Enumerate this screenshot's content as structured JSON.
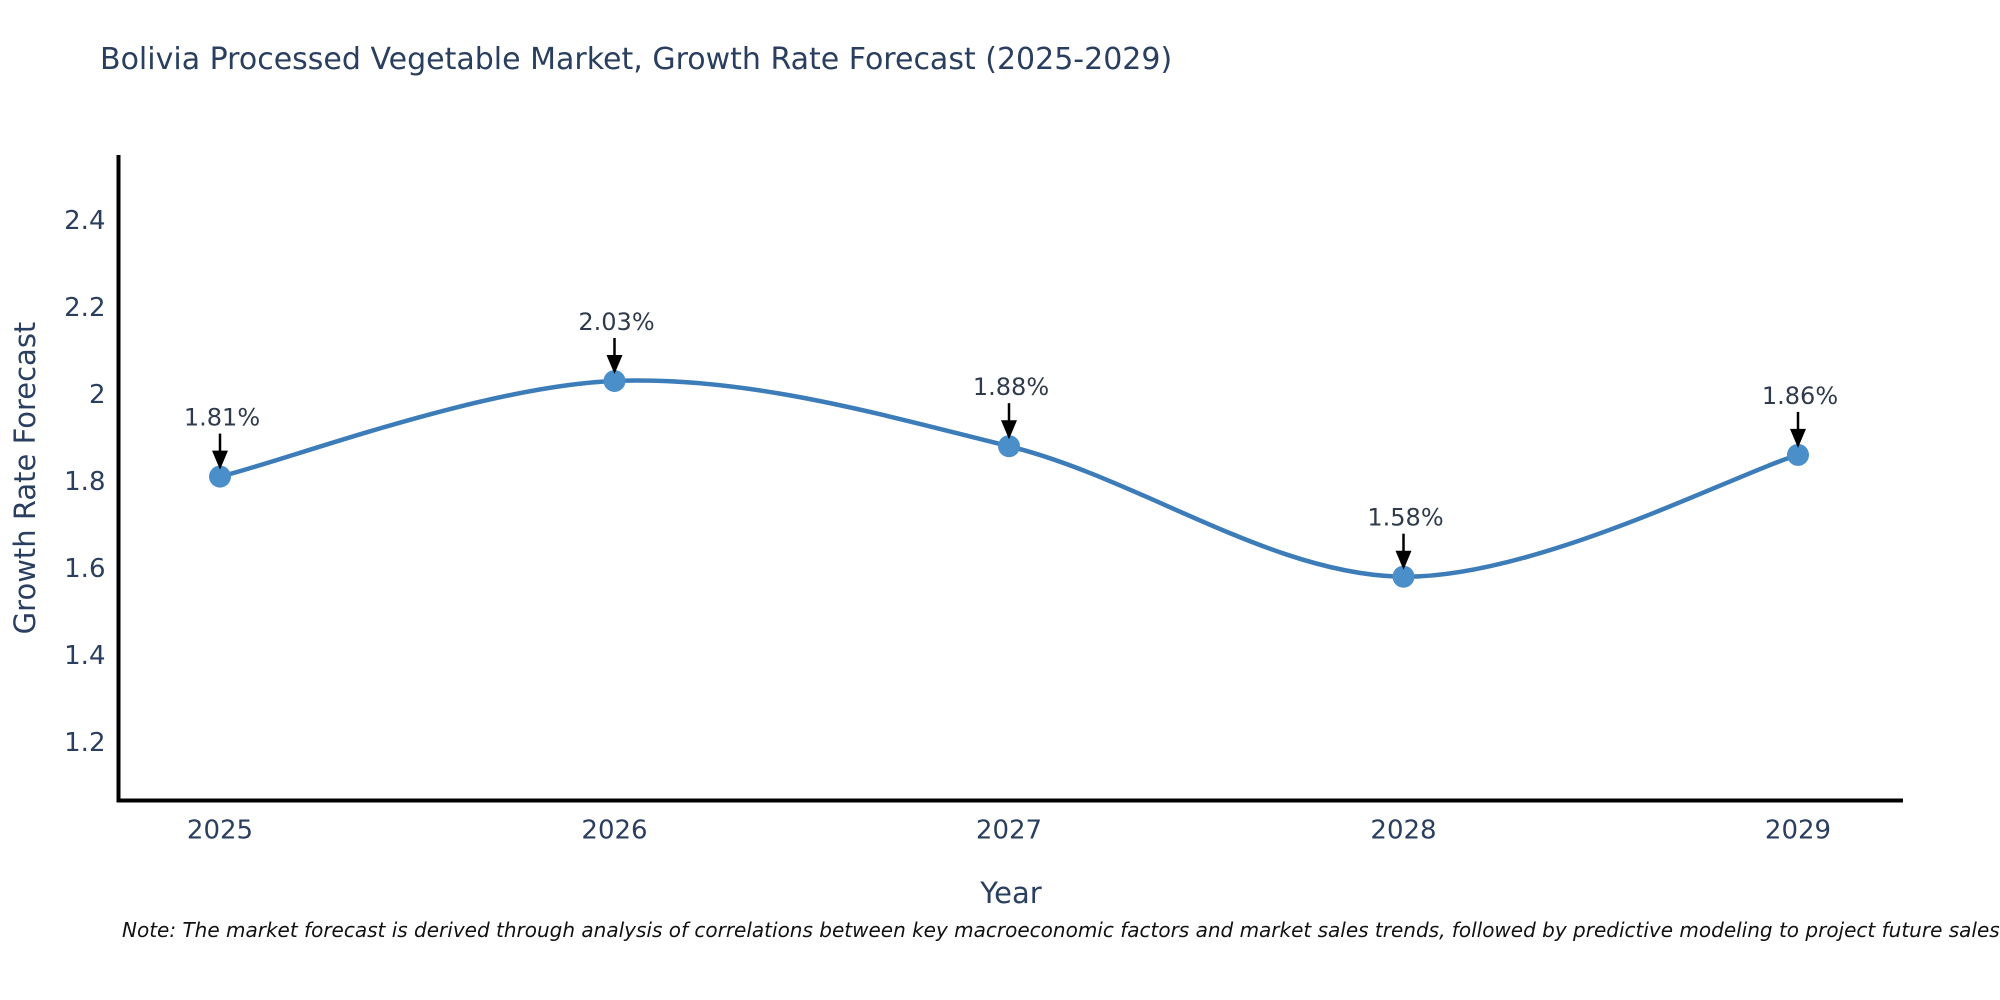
{
  "note": "Note: The market forecast is derived through analysis of correlations between key macroeconomic factors and market sales trends, followed by predictive modeling to project future sales",
  "chart_data": {
    "type": "line",
    "line_shape": "spline",
    "title": "Bolivia Processed Vegetable Market, Growth Rate Forecast (2025-2029)",
    "xlabel": "Year",
    "ylabel": "Growth Rate Forecast",
    "categories": [
      "2025",
      "2026",
      "2027",
      "2028",
      "2029"
    ],
    "values": [
      1.81,
      2.03,
      1.88,
      1.58,
      1.86
    ],
    "point_labels": [
      "1.81%",
      "2.03%",
      "1.88%",
      "1.58%",
      "1.86%"
    ],
    "yticks": [
      2.4,
      2.2,
      2.0,
      1.8,
      1.6,
      1.4,
      1.2
    ],
    "ytick_labels": [
      "2.4",
      "2.2",
      "2",
      "1.8",
      "1.6",
      "1.4",
      "1.2"
    ],
    "ylim": [
      1.06,
      2.62
    ],
    "grid": false,
    "legend_position": "none",
    "annotation_style": "value label with downward black arrow to marker",
    "colors": {
      "line": "#3c7cb8",
      "marker": "#4a8fc9",
      "axis": "#000000",
      "tick_text": "#2a3f5f",
      "title_text": "#2a3f5f",
      "annotation_text": "#2f3b4c",
      "annotation_arrow": "#000000",
      "note_text": "#111111",
      "background": "#ffffff"
    }
  }
}
